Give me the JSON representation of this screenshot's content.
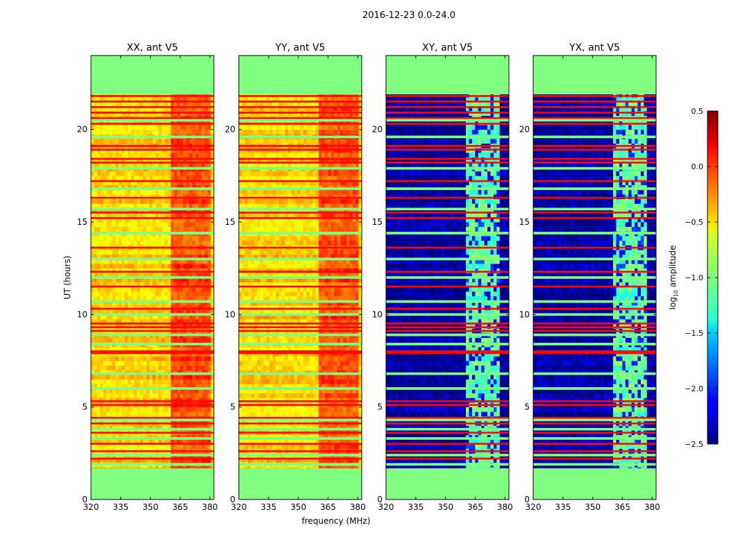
{
  "chart_data": {
    "type": "heatmap",
    "suptitle": "2016-12-23 0.0-24.0",
    "xlabel": "frequency (MHz)",
    "ylabel": "UT (hours)",
    "xlim": [
      320,
      382
    ],
    "ylim": [
      0,
      24
    ],
    "xticks": [
      320,
      335,
      350,
      365,
      380
    ],
    "yticks": [
      0,
      5,
      10,
      15,
      20
    ],
    "observed_range_hours": [
      1.7,
      21.9
    ],
    "colorbar": {
      "label": "log10 amplitude",
      "min": -2.5,
      "max": 0.5,
      "ticks": [
        0.5,
        0.0,
        -0.5,
        -1.0,
        -1.5,
        -2.0,
        -2.5
      ],
      "tick_labels": [
        "0.5",
        "0.0",
        "−0.5",
        "−1.0",
        "−1.5",
        "−2.0",
        "−2.5"
      ],
      "colormap": "jet"
    },
    "panels": [
      {
        "title": "XX, ant V5",
        "kind": "auto",
        "base_level": -0.5,
        "hot_band_mhz": [
          361,
          381
        ],
        "hot_level": -0.1
      },
      {
        "title": "YY, ant V5",
        "kind": "auto",
        "base_level": -0.5,
        "hot_band_mhz": [
          361,
          381
        ],
        "hot_level": -0.1
      },
      {
        "title": "XY, ant V5",
        "kind": "cross",
        "base_level": -2.4,
        "hot_band_mhz": [
          361,
          378
        ],
        "hot_level": -1.1
      },
      {
        "title": "YX, ant V5",
        "kind": "cross",
        "base_level": -2.4,
        "hot_band_mhz": [
          361,
          378
        ],
        "hot_level": -1.1
      }
    ],
    "flagged_level": -1.0,
    "bright_rows_hours": [
      2.2,
      2.6,
      3.0,
      3.6,
      4.1,
      4.4,
      5.1,
      5.3,
      7.9,
      8.0,
      9.1,
      9.3,
      9.5,
      10.3,
      11.5,
      12.3,
      13.6,
      15.2,
      15.5,
      16.3,
      17.2,
      18.2,
      18.4,
      18.9,
      19.1,
      20.3,
      20.6,
      20.9,
      21.2,
      21.5,
      21.8
    ],
    "flag_rows_hours": [
      1.9,
      2.4,
      3.3,
      3.8,
      4.3,
      6.0,
      6.8,
      8.4,
      8.9,
      10.0,
      10.7,
      12.0,
      13.0,
      14.4,
      15.7,
      16.8,
      17.9,
      19.6,
      20.5
    ]
  }
}
